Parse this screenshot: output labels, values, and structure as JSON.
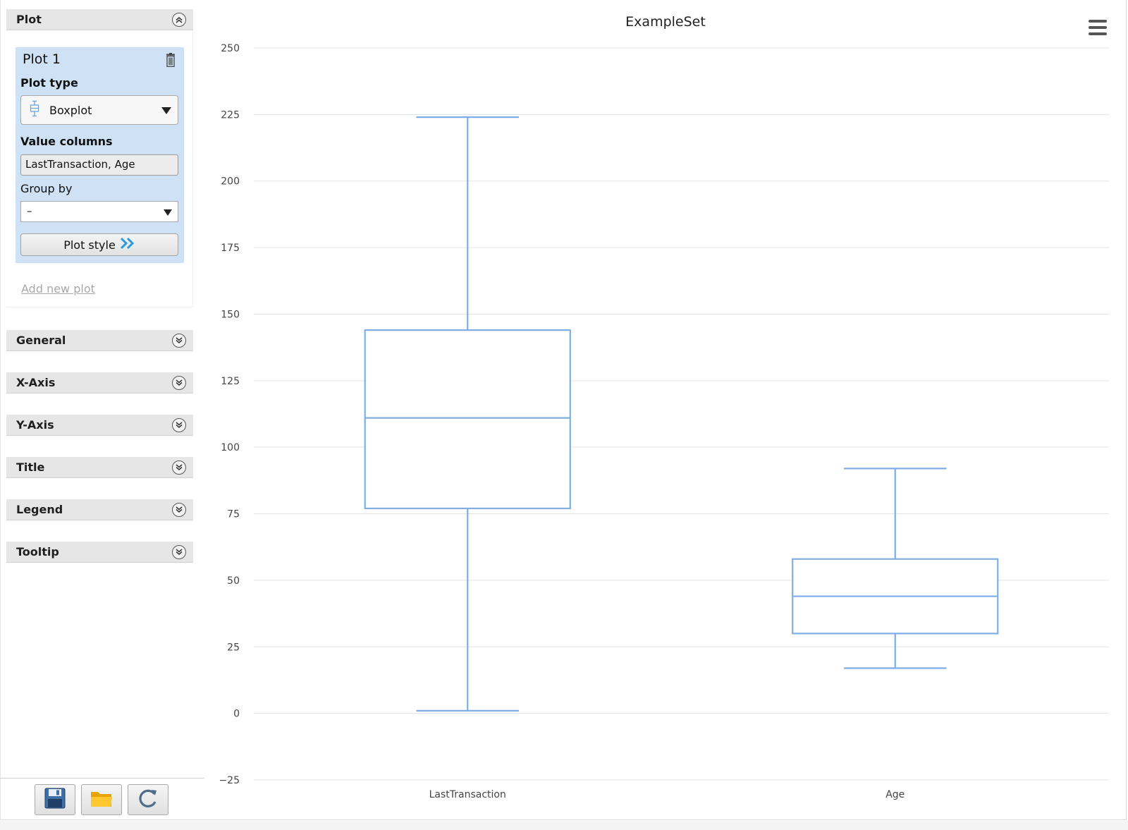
{
  "sidebar": {
    "plot_section": {
      "label": "Plot"
    },
    "plot_card": {
      "title": "Plot 1",
      "plot_type_label": "Plot type",
      "plot_type_value": "Boxplot",
      "value_columns_label": "Value columns",
      "value_columns_value": "LastTransaction, Age",
      "group_by_label": "Group by",
      "group_by_value": "–",
      "plot_style_label": "Plot style"
    },
    "add_new_plot": "Add new plot",
    "sections": [
      {
        "label": "General"
      },
      {
        "label": "X-Axis"
      },
      {
        "label": "Y-Axis"
      },
      {
        "label": "Title"
      },
      {
        "label": "Legend"
      },
      {
        "label": "Tooltip"
      }
    ],
    "toolbar": {
      "save_icon": "save-icon",
      "open_icon": "folder-icon",
      "refresh_icon": "refresh-icon"
    }
  },
  "chart": {
    "menu_icon": "hamburger-menu-icon",
    "box_color": "#7eaee5",
    "grid_color": "#e3e3e3"
  },
  "chart_data": {
    "type": "boxplot",
    "title": "ExampleSet",
    "xlabel": "",
    "ylabel": "",
    "ylim": [
      -25,
      250
    ],
    "yticks": [
      -25,
      0,
      25,
      50,
      75,
      100,
      125,
      150,
      175,
      200,
      225,
      250
    ],
    "grid": true,
    "categories": [
      "LastTransaction",
      "Age"
    ],
    "boxes": [
      {
        "category": "LastTransaction",
        "min": 1,
        "q1": 77,
        "median": 111,
        "q3": 144,
        "max": 224
      },
      {
        "category": "Age",
        "min": 17,
        "q1": 30,
        "median": 44,
        "q3": 58,
        "max": 92
      }
    ]
  }
}
